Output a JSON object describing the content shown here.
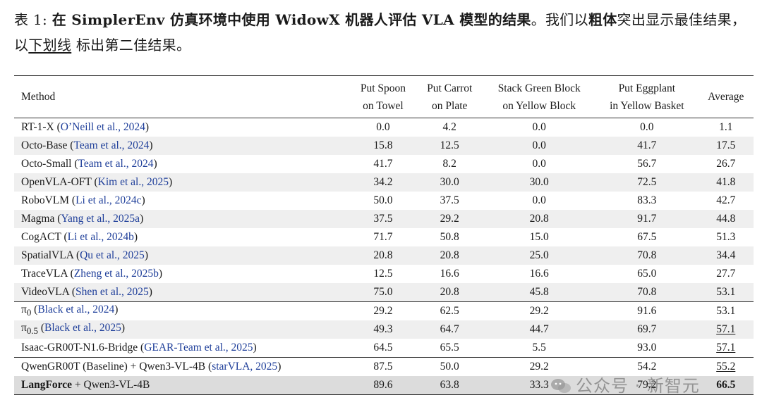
{
  "caption": {
    "label": "表 1:",
    "bold": "在 SimplerEnv 仿真环境中使用 WidowX 机器人评估 VLA 模型的结果",
    "p1": "。我们以",
    "bold2": "粗体",
    "p2": "突出显示最佳结果，以",
    "underline": "下划线",
    "p3": " 标出第二佳结果。"
  },
  "table": {
    "headers": [
      {
        "l1": "Method",
        "l2": ""
      },
      {
        "l1": "Put Spoon",
        "l2": "on Towel"
      },
      {
        "l1": "Put Carrot",
        "l2": "on Plate"
      },
      {
        "l1": "Stack Green Block",
        "l2": "on Yellow Block"
      },
      {
        "l1": "Put Eggplant",
        "l2": "in Yellow Basket"
      },
      {
        "l1": "Average",
        "l2": ""
      }
    ],
    "rows": [
      {
        "method": "RT-1-X",
        "cite": "O’Neill et al., 2024",
        "v": [
          "0.0",
          "4.2",
          "0.0",
          "0.0",
          "1.1"
        ]
      },
      {
        "method": "Octo-Base",
        "cite": "Team et al., 2024",
        "v": [
          "15.8",
          "12.5",
          "0.0",
          "41.7",
          "17.5"
        ]
      },
      {
        "method": "Octo-Small",
        "cite": "Team et al., 2024",
        "v": [
          "41.7",
          "8.2",
          "0.0",
          "56.7",
          "26.7"
        ]
      },
      {
        "method": "OpenVLA-OFT",
        "cite": "Kim et al., 2025",
        "v": [
          "34.2",
          "30.0",
          "30.0",
          "72.5",
          "41.8"
        ]
      },
      {
        "method": "RoboVLM",
        "cite": "Li et al., 2024c",
        "v": [
          "50.0",
          "37.5",
          "0.0",
          "83.3",
          "42.7"
        ]
      },
      {
        "method": "Magma",
        "cite": "Yang et al., 2025a",
        "v": [
          "37.5",
          "29.2",
          "20.8",
          "91.7",
          "44.8"
        ]
      },
      {
        "method": "CogACT",
        "cite": "Li et al., 2024b",
        "v": [
          "71.7",
          "50.8",
          "15.0",
          "67.5",
          "51.3"
        ]
      },
      {
        "method": "SpatialVLA",
        "cite": "Qu et al., 2025",
        "v": [
          "20.8",
          "20.8",
          "25.0",
          "70.8",
          "34.4"
        ]
      },
      {
        "method": "TraceVLA",
        "cite": "Zheng et al., 2025b",
        "v": [
          "12.5",
          "16.6",
          "16.6",
          "65.0",
          "27.7"
        ]
      },
      {
        "method": "VideoVLA",
        "cite": "Shen et al., 2025",
        "v": [
          "75.0",
          "20.8",
          "45.8",
          "70.8",
          "53.1"
        ]
      },
      {
        "method": "π",
        "sub": "0",
        "cite": "Black et al., 2024",
        "v": [
          "29.2",
          "62.5",
          "29.2",
          "91.6",
          "53.1"
        ]
      },
      {
        "method": "π",
        "sub": "0.5",
        "cite": "Black et al., 2025",
        "v": [
          "49.3",
          "64.7",
          "44.7",
          "69.7",
          "57.1"
        ]
      },
      {
        "method": "Isaac-GR00T-N1.6-Bridge",
        "cite": "GEAR-Team et al., 2025",
        "v": [
          "64.5",
          "65.5",
          "5.5",
          "93.0",
          "57.1"
        ]
      },
      {
        "method": "QwenGR00T (Baseline) + Qwen3-VL-4B",
        "cite": "starVLA, 2025",
        "v": [
          "87.5",
          "50.0",
          "29.2",
          "54.2",
          "55.2"
        ]
      },
      {
        "method": "LangForce",
        "suffix": " + Qwen3-VL-4B",
        "v": [
          "89.6",
          "63.8",
          "33.3",
          "79.2",
          "66.5"
        ]
      }
    ]
  },
  "watermark": "公众号 · 新智元"
}
